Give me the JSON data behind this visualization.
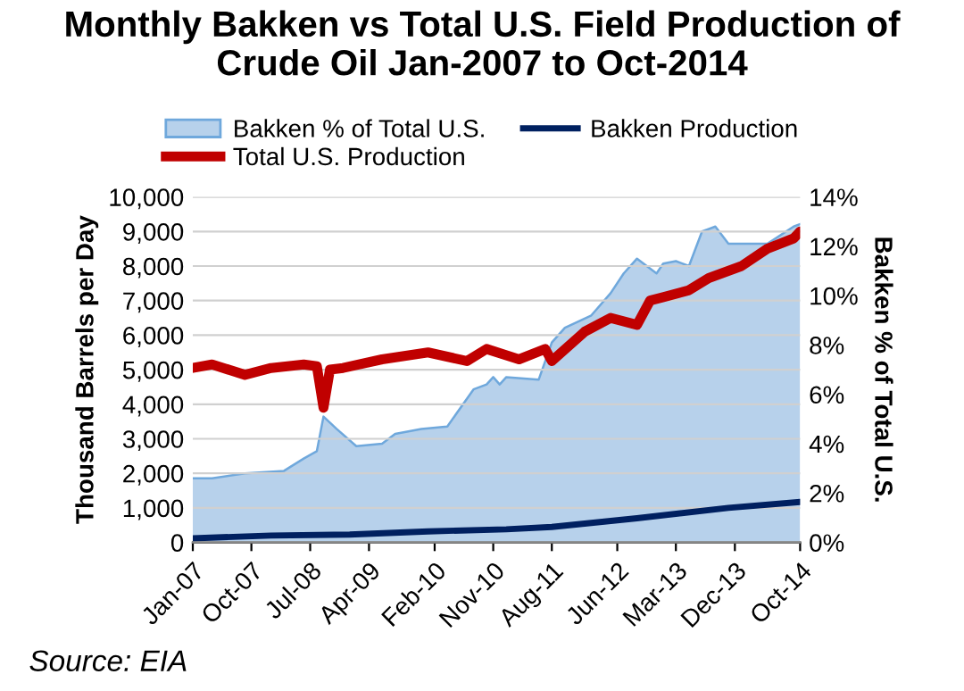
{
  "chart_data": {
    "type": "line",
    "title": "Monthly Bakken vs Total U.S. Field Production of\nCrude Oil Jan-2007 to Oct-2014",
    "ylabel": "Thousand Barrels per Day",
    "y2label": "Bakken % of Total U.S.",
    "annotations": [
      "Source: EIA"
    ],
    "xlim": [
      "2007-01",
      "2014-10"
    ],
    "xticks": [
      {
        "value": "2007-01",
        "label": "Jan-07"
      },
      {
        "value": "2007-10",
        "label": "Oct-07"
      },
      {
        "value": "2008-07",
        "label": "Jul-08"
      },
      {
        "value": "2009-04",
        "label": "Apr-09"
      },
      {
        "value": "2010-02",
        "label": "Feb-10"
      },
      {
        "value": "2010-11",
        "label": "Nov-10"
      },
      {
        "value": "2011-08",
        "label": "Aug-11"
      },
      {
        "value": "2012-06",
        "label": "Jun-12"
      },
      {
        "value": "2013-03",
        "label": "Mar-13"
      },
      {
        "value": "2013-12",
        "label": "Dec-13"
      },
      {
        "value": "2014-10",
        "label": "Oct-14"
      }
    ],
    "ylim": [
      0,
      10000
    ],
    "yticks": [
      {
        "value": 0,
        "label": "0"
      },
      {
        "value": 1000,
        "label": "1,000"
      },
      {
        "value": 2000,
        "label": "2,000"
      },
      {
        "value": 3000,
        "label": "3,000"
      },
      {
        "value": 4000,
        "label": "4,000"
      },
      {
        "value": 5000,
        "label": "5,000"
      },
      {
        "value": 6000,
        "label": "6,000"
      },
      {
        "value": 7000,
        "label": "7,000"
      },
      {
        "value": 8000,
        "label": "8,000"
      },
      {
        "value": 9000,
        "label": "9,000"
      },
      {
        "value": 10000,
        "label": "10,000"
      }
    ],
    "y2lim": [
      0,
      14
    ],
    "y2ticks": [
      {
        "value": 0,
        "label": "0%"
      },
      {
        "value": 2,
        "label": "2%"
      },
      {
        "value": 4,
        "label": "4%"
      },
      {
        "value": 6,
        "label": "6%"
      },
      {
        "value": 8,
        "label": "8%"
      },
      {
        "value": 10,
        "label": "10%"
      },
      {
        "value": 12,
        "label": "12%"
      },
      {
        "value": 14,
        "label": "14%"
      }
    ],
    "grid": "y",
    "legend": "top",
    "series": [
      {
        "name": "Bakken % of Total U.S.",
        "type": "area",
        "axis": "y2",
        "color": "#b7d1eb",
        "x": [
          "2007-01",
          "2007-04",
          "2007-09",
          "2008-03",
          "2008-06",
          "2008-08",
          "2008-09",
          "2008-11",
          "2009-02",
          "2009-06",
          "2009-08",
          "2009-12",
          "2010-04",
          "2010-08",
          "2010-10",
          "2010-11",
          "2010-12",
          "2011-01",
          "2011-06",
          "2011-08",
          "2011-10",
          "2012-02",
          "2012-05",
          "2012-07",
          "2012-09",
          "2012-12",
          "2013-01",
          "2013-03",
          "2013-05",
          "2013-07",
          "2013-09",
          "2013-11",
          "2014-01",
          "2014-05",
          "2014-09",
          "2014-10"
        ],
        "values": [
          2.6,
          2.6,
          2.8,
          2.9,
          3.4,
          3.7,
          5.1,
          4.6,
          3.9,
          4.0,
          4.4,
          4.6,
          4.7,
          6.2,
          6.4,
          6.7,
          6.4,
          6.7,
          6.6,
          8.1,
          8.7,
          9.2,
          10.1,
          10.9,
          11.5,
          10.9,
          11.3,
          11.4,
          11.2,
          12.6,
          12.8,
          12.1,
          12.1,
          12.1,
          12.8,
          12.9
        ]
      },
      {
        "name": "Bakken Production",
        "color": "#002060",
        "x": [
          "2007-01",
          "2008-01",
          "2009-01",
          "2010-01",
          "2011-01",
          "2011-08",
          "2012-09",
          "2013-11",
          "2014-10"
        ],
        "values": [
          120,
          200,
          230,
          320,
          380,
          450,
          700,
          1000,
          1170
        ]
      },
      {
        "name": "Total U.S. Production",
        "color": "#c00000",
        "x": [
          "2007-01",
          "2007-04",
          "2007-09",
          "2008-01",
          "2008-06",
          "2008-08",
          "2008-09",
          "2008-10",
          "2008-12",
          "2009-06",
          "2010-01",
          "2010-07",
          "2010-10",
          "2011-03",
          "2011-07",
          "2011-08",
          "2012-01",
          "2012-05",
          "2012-09",
          "2012-11",
          "2013-01",
          "2013-05",
          "2013-08",
          "2014-01",
          "2014-05",
          "2014-09",
          "2014-10"
        ],
        "values": [
          5050,
          5150,
          4850,
          5050,
          5150,
          5100,
          3900,
          5000,
          5050,
          5300,
          5500,
          5250,
          5600,
          5300,
          5600,
          5250,
          6100,
          6500,
          6300,
          7000,
          7100,
          7300,
          7650,
          8000,
          8500,
          8800,
          9000
        ]
      }
    ]
  }
}
